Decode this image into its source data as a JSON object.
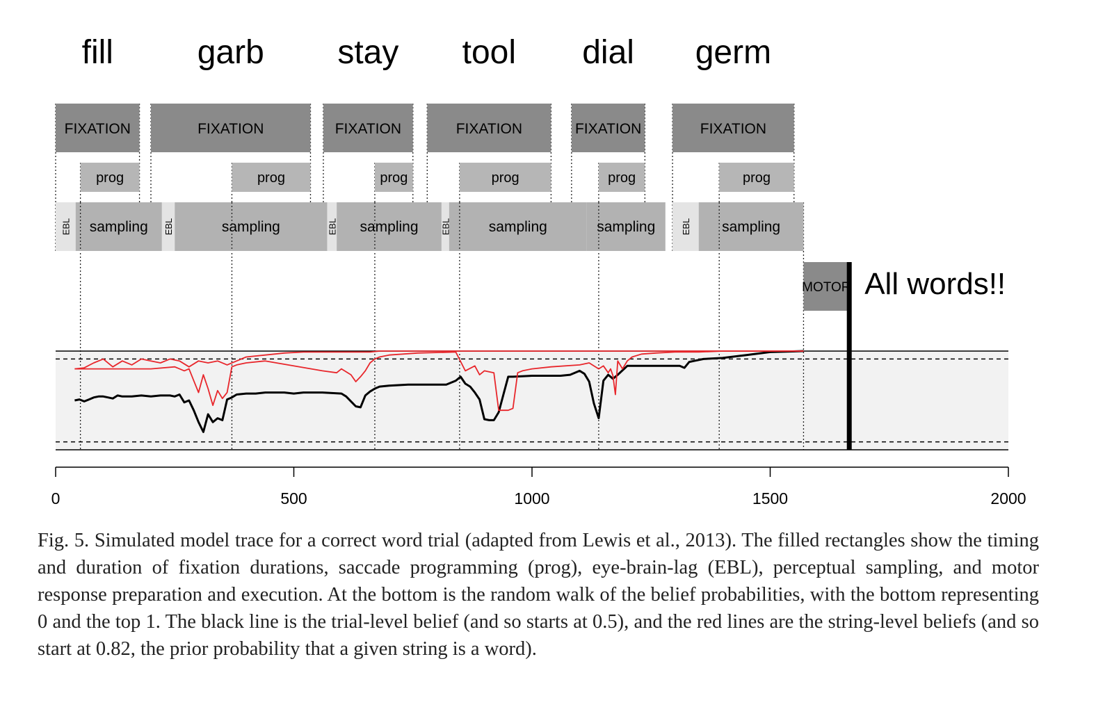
{
  "chart_data": {
    "type": "timeline",
    "words": [
      {
        "label": "fill",
        "center": 140
      },
      {
        "label": "garb",
        "center": 330
      },
      {
        "label": "stay",
        "center": 527
      },
      {
        "label": "tool",
        "center": 680
      },
      {
        "label": "dial",
        "center": 920
      },
      {
        "label": "germ",
        "center": 1070
      }
    ],
    "fixations": [
      {
        "label": "FIXATION",
        "start": 0,
        "end": 176
      },
      {
        "label": "FIXATION",
        "start": 200,
        "end": 535
      },
      {
        "label": "FIXATION",
        "start": 562,
        "end": 750
      },
      {
        "label": "FIXATION",
        "start": 780,
        "end": 1040
      },
      {
        "label": "FIXATION",
        "start": 1083,
        "end": 1237
      },
      {
        "label": "FIXATION",
        "start": 1295,
        "end": 1550
      }
    ],
    "prog": [
      {
        "label": "prog",
        "start": 52,
        "end": 176
      },
      {
        "label": "prog",
        "start": 370,
        "end": 535
      },
      {
        "label": "prog",
        "start": 670,
        "end": 750
      },
      {
        "label": "prog",
        "start": 848,
        "end": 1040
      },
      {
        "label": "prog",
        "start": 1140,
        "end": 1237
      },
      {
        "label": "prog",
        "start": 1393,
        "end": 1550
      }
    ],
    "ebl": [
      {
        "label": "EBL",
        "start": 0,
        "end": 42
      },
      {
        "label": "EBL",
        "start": 223,
        "end": 250
      },
      {
        "label": "EBL",
        "start": 570,
        "end": 590
      },
      {
        "label": "EBL",
        "start": 810,
        "end": 826
      },
      {
        "label": "EBL",
        "start": 1295,
        "end": 1350
      }
    ],
    "sampling": [
      {
        "label": "sampling",
        "start": 42,
        "end": 223
      },
      {
        "label": "sampling",
        "start": 250,
        "end": 570
      },
      {
        "label": "sampling",
        "start": 590,
        "end": 810
      },
      {
        "label": "sampling",
        "start": 826,
        "end": 1115
      },
      {
        "label": "sampling",
        "start": 1115,
        "end": 1280
      },
      {
        "label": "sampling",
        "start": 1350,
        "end": 1570
      }
    ],
    "motor": {
      "label": "MOTOR",
      "start": 1570,
      "end": 1666
    },
    "response": {
      "time": 1666,
      "label": "All words!!"
    },
    "thresholds": [
      0.92,
      0.08
    ],
    "xlim": [
      0,
      2000
    ],
    "ylim": [
      0,
      1
    ],
    "xticks": [
      0,
      500,
      1000,
      1500,
      2000
    ],
    "series": [
      {
        "color": "#000000",
        "x": [
          40,
          50,
          60,
          70,
          80,
          90,
          100,
          110,
          120,
          130,
          140,
          160,
          180,
          200,
          220,
          240,
          250,
          260,
          270,
          280,
          290,
          300,
          310,
          320,
          330,
          340,
          350,
          360,
          370,
          380,
          400,
          420,
          440,
          460,
          480,
          500,
          520,
          560,
          600,
          610,
          620,
          630,
          640,
          650,
          660,
          670,
          680,
          700,
          740,
          780,
          820,
          840,
          850,
          860,
          870,
          880,
          890,
          900,
          910,
          920,
          930,
          940,
          950,
          960,
          1000,
          1040,
          1060,
          1080,
          1100,
          1110,
          1120,
          1130,
          1140,
          1150,
          1160,
          1170,
          1180,
          1200,
          1240,
          1260,
          1280,
          1300,
          1310,
          1320,
          1330,
          1340,
          1360,
          1400,
          1450,
          1500,
          1570
        ],
        "y": [
          0.5,
          0.51,
          0.49,
          0.51,
          0.53,
          0.54,
          0.54,
          0.53,
          0.52,
          0.55,
          0.54,
          0.54,
          0.55,
          0.54,
          0.55,
          0.55,
          0.54,
          0.56,
          0.48,
          0.5,
          0.4,
          0.28,
          0.18,
          0.36,
          0.28,
          0.32,
          0.3,
          0.51,
          0.53,
          0.56,
          0.57,
          0.57,
          0.58,
          0.58,
          0.58,
          0.57,
          0.58,
          0.58,
          0.57,
          0.54,
          0.49,
          0.44,
          0.43,
          0.55,
          0.59,
          0.62,
          0.64,
          0.65,
          0.66,
          0.66,
          0.66,
          0.7,
          0.74,
          0.67,
          0.64,
          0.58,
          0.51,
          0.31,
          0.3,
          0.3,
          0.38,
          0.56,
          0.74,
          0.74,
          0.75,
          0.75,
          0.75,
          0.76,
          0.8,
          0.77,
          0.69,
          0.47,
          0.32,
          0.7,
          0.76,
          0.72,
          0.76,
          0.85,
          0.85,
          0.85,
          0.85,
          0.85,
          0.85,
          0.83,
          0.89,
          0.9,
          0.92,
          0.93,
          0.96,
          0.99,
          1.0
        ]
      },
      {
        "color": "#e8262b",
        "x": [
          40,
          60,
          80,
          100,
          120,
          140,
          160,
          180,
          200,
          220,
          240,
          260,
          280,
          300,
          320,
          340,
          360,
          380,
          400,
          440,
          480,
          520,
          560,
          580,
          600,
          620,
          640,
          660,
          680,
          700,
          740,
          780,
          820,
          860,
          880,
          900,
          920,
          940,
          960,
          980,
          1000,
          1020,
          1040,
          1080,
          1120,
          1140,
          1150,
          1160,
          1170,
          1180,
          1200,
          1240,
          1300,
          1400,
          1500,
          1570
        ],
        "y": [
          0.82,
          0.83,
          0.88,
          0.92,
          0.84,
          0.9,
          0.86,
          0.92,
          0.9,
          0.88,
          0.92,
          0.9,
          0.84,
          0.9,
          0.88,
          0.9,
          0.86,
          0.9,
          0.94,
          0.96,
          0.98,
          0.99,
          0.99,
          0.99,
          0.99,
          0.99,
          0.99,
          0.99,
          1.0,
          1.0,
          1.0,
          1.0,
          1.0,
          1.0,
          1.0,
          1.0,
          1.0,
          1.0,
          1.0,
          1.0,
          1.0,
          1.0,
          1.0,
          1.0,
          1.0,
          1.0,
          1.0,
          1.0,
          1.0,
          1.0,
          1.0,
          1.0,
          1.0,
          1.0,
          1.0,
          1.0
        ]
      },
      {
        "color": "#e8262b",
        "x": [
          40,
          100,
          200,
          250,
          270,
          280,
          290,
          300,
          310,
          320,
          330,
          340,
          350,
          360,
          370,
          380,
          400,
          440,
          560,
          590,
          600,
          620,
          630,
          640,
          650,
          660,
          670,
          680,
          700,
          760,
          840,
          860,
          880,
          890,
          900,
          920,
          930,
          940,
          950,
          960,
          970,
          980,
          1000,
          1040,
          1100,
          1120,
          1140,
          1150,
          1160,
          1165,
          1170,
          1175,
          1180,
          1190,
          1200,
          1210,
          1230,
          1260,
          1300,
          1350,
          1400,
          1570
        ],
        "y": [
          0.82,
          0.82,
          0.82,
          0.84,
          0.8,
          0.82,
          0.7,
          0.58,
          0.76,
          0.62,
          0.45,
          0.6,
          0.52,
          0.58,
          0.84,
          0.86,
          0.88,
          0.9,
          0.8,
          0.78,
          0.82,
          0.76,
          0.69,
          0.74,
          0.8,
          0.88,
          0.92,
          0.94,
          0.96,
          0.98,
          0.99,
          0.8,
          0.85,
          0.76,
          0.8,
          0.78,
          0.4,
          0.4,
          0.4,
          0.42,
          0.78,
          0.8,
          0.82,
          0.84,
          0.86,
          0.88,
          0.82,
          0.85,
          0.78,
          0.82,
          0.75,
          0.56,
          0.9,
          0.82,
          0.9,
          0.94,
          0.97,
          0.98,
          0.99,
          0.99,
          1.0,
          1.0
        ]
      }
    ]
  },
  "caption": "Fig. 5.  Simulated model trace for a correct word trial (adapted from Lewis et al., 2013). The filled rectangles show the timing and duration of fixation durations, saccade programming (prog), eye-brain-lag (EBL), perceptual sampling, and motor response preparation and execution. At the bottom is the random walk of the belief probabilities, with the bottom representing 0 and the top 1. The black line is the trial-level belief (and so starts at 0.5), and the red lines are the string-level beliefs (and so start at 0.82, the prior probability that a given string is a word).",
  "colors": {
    "fixation": "#8a8a8a",
    "prog": "#b6b6b6",
    "sampling": "#b2b2b2",
    "ebl": "#e4e4e4",
    "motor": "#8a8a8a",
    "belief_band": "#f2f2f2",
    "red": "#e8262b"
  }
}
